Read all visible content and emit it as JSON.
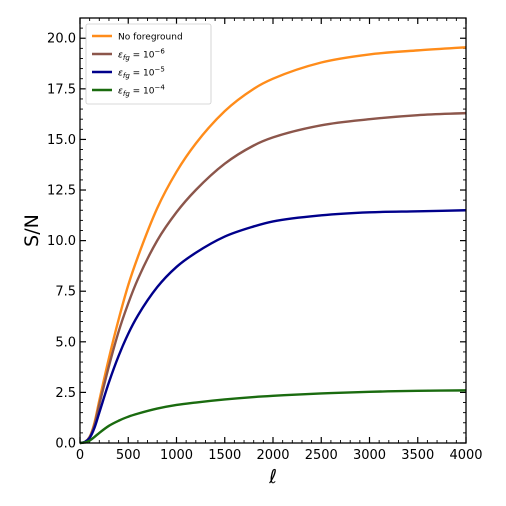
{
  "chart_data": {
    "type": "line",
    "xlabel": "ℓ",
    "ylabel": "S/N",
    "xlim": [
      0,
      4000
    ],
    "ylim": [
      0,
      21
    ],
    "xticks": [
      0,
      500,
      1000,
      1500,
      2000,
      2500,
      3000,
      3500,
      4000
    ],
    "yticks": [
      0.0,
      2.5,
      5.0,
      7.5,
      10.0,
      12.5,
      15.0,
      17.5,
      20.0
    ],
    "x_minor_step": 100,
    "y_minor_step": 0.5,
    "grid": false,
    "legend_position": "top-left",
    "x": [
      0,
      50,
      100,
      150,
      200,
      300,
      400,
      500,
      600,
      800,
      1000,
      1200,
      1500,
      1800,
      2000,
      2500,
      3000,
      3500,
      4000
    ],
    "series": [
      {
        "name": "No foreground",
        "legend_base": "No foreground",
        "legend_exp": "",
        "color": "#ff8c1a",
        "values": [
          0.0,
          0.05,
          0.3,
          1.0,
          2.1,
          4.2,
          6.1,
          7.8,
          9.2,
          11.6,
          13.4,
          14.8,
          16.4,
          17.5,
          18.0,
          18.8,
          19.2,
          19.4,
          19.55
        ]
      },
      {
        "name": "ε_fg = 10^-6",
        "legend_base": "ε",
        "legend_sub": "fg",
        "legend_mid": " = 10",
        "legend_exp": "−6",
        "color": "#8c564b",
        "values": [
          0.0,
          0.05,
          0.3,
          0.9,
          1.9,
          3.8,
          5.5,
          6.9,
          8.1,
          10.0,
          11.4,
          12.5,
          13.8,
          14.7,
          15.1,
          15.7,
          16.0,
          16.2,
          16.3
        ]
      },
      {
        "name": "ε_fg = 10^-5",
        "legend_base": "ε",
        "legend_sub": "fg",
        "legend_mid": " = 10",
        "legend_exp": "−5",
        "color": "#00008b",
        "values": [
          0.0,
          0.05,
          0.25,
          0.75,
          1.5,
          3.0,
          4.3,
          5.4,
          6.3,
          7.7,
          8.7,
          9.4,
          10.2,
          10.7,
          10.95,
          11.25,
          11.4,
          11.45,
          11.5
        ]
      },
      {
        "name": "ε_fg = 10^-4",
        "legend_base": "ε",
        "legend_sub": "fg",
        "legend_mid": " = 10",
        "legend_exp": "−4",
        "color": "#1a6b0f",
        "values": [
          0.0,
          0.03,
          0.12,
          0.3,
          0.5,
          0.85,
          1.1,
          1.3,
          1.45,
          1.7,
          1.88,
          2.0,
          2.15,
          2.27,
          2.33,
          2.45,
          2.53,
          2.58,
          2.6
        ]
      }
    ]
  }
}
